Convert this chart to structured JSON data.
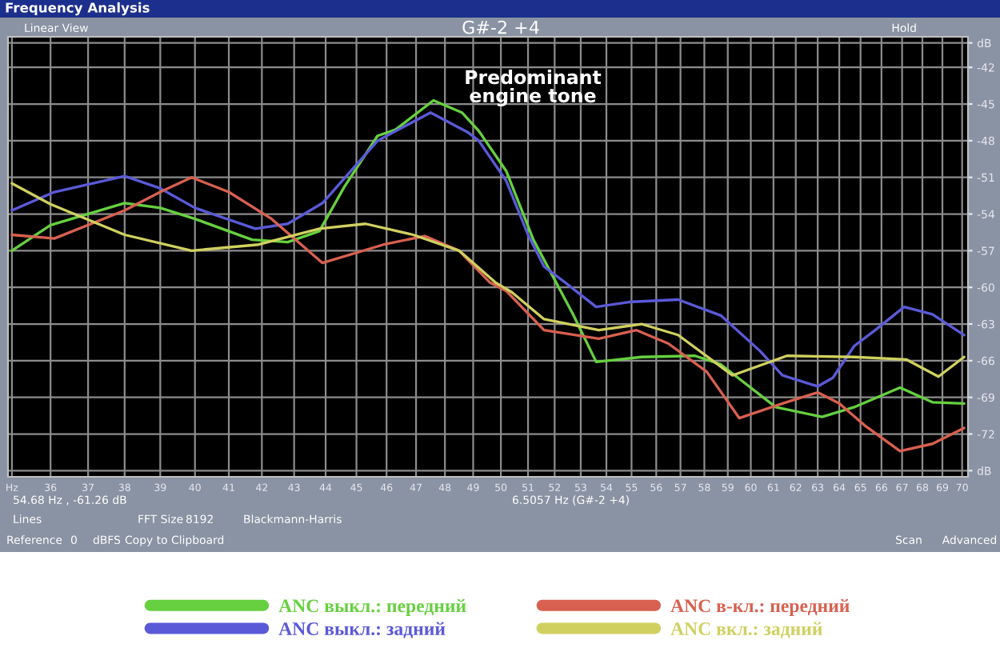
{
  "chart_data": {
    "type": "line",
    "title": "Frequency Analysis",
    "subtitle": "G#-2 +4",
    "log": "x",
    "grid": true,
    "legend": "bottom",
    "marker": "none",
    "line_style": "solid",
    "xlim": [
      34.9,
      70.3
    ],
    "ylim": [
      -75.5,
      -39.5
    ],
    "xticks": [
      {
        "value": 35,
        "label": "Hz"
      },
      36,
      37,
      38,
      39,
      40,
      41,
      42,
      43,
      44,
      45,
      46,
      47,
      48,
      49,
      50,
      51,
      52,
      53,
      54,
      55,
      56,
      57,
      58,
      59,
      60,
      61,
      62,
      63,
      64,
      65,
      66,
      67,
      68,
      69,
      70
    ],
    "yticks": [
      {
        "value": -40,
        "label": "dB"
      },
      -42,
      -45,
      -48,
      -51,
      -54,
      -57,
      -60,
      -63,
      -66,
      -69,
      -72,
      {
        "value": -75,
        "label": "dB"
      }
    ],
    "series": [
      {
        "name": "ANC выкл.: передний",
        "color": "#66d040",
        "x": [
          35.0,
          36.0,
          38.0,
          39.0,
          40.0,
          41.7,
          42.8,
          43.8,
          44.6,
          45.7,
          46.3,
          47.6,
          48.6,
          49.2,
          50.2,
          51.2,
          52.7,
          53.6,
          55.4,
          57.6,
          58.7,
          61.1,
          63.2,
          64.7,
          66.9,
          68.5,
          70.1
        ],
        "values": [
          -57.0,
          -54.9,
          -53.1,
          -53.5,
          -54.4,
          -56.1,
          -56.3,
          -55.4,
          -51.8,
          -47.6,
          -47.1,
          -44.7,
          -45.7,
          -47.2,
          -50.5,
          -56.1,
          -62.2,
          -66.1,
          -65.7,
          -65.6,
          -66.3,
          -69.8,
          -70.6,
          -69.8,
          -68.2,
          -69.4,
          -69.5
        ]
      },
      {
        "name": "ANC выкл.: задний",
        "color": "#5a5ad8",
        "x": [
          35.0,
          36.1,
          38.0,
          39.0,
          40.0,
          41.8,
          42.8,
          43.9,
          45.7,
          47.5,
          48.8,
          49.2,
          50.2,
          51.0,
          51.6,
          52.4,
          53.6,
          54.9,
          56.9,
          58.7,
          60.4,
          61.4,
          63.0,
          63.7,
          64.7,
          65.7,
          67.1,
          68.5,
          70.1
        ],
        "values": [
          -53.7,
          -52.2,
          -50.9,
          -51.9,
          -53.5,
          -55.2,
          -54.8,
          -53.1,
          -48.0,
          -45.7,
          -47.3,
          -48.0,
          -51.3,
          -55.7,
          -58.3,
          -59.6,
          -61.6,
          -61.2,
          -61.0,
          -62.3,
          -65.2,
          -67.2,
          -68.1,
          -67.4,
          -64.8,
          -63.5,
          -61.6,
          -62.2,
          -63.9
        ]
      },
      {
        "name": "ANC в-кл.: передний",
        "color": "#d86050",
        "x": [
          35.0,
          36.1,
          38.0,
          39.0,
          39.9,
          41.0,
          42.3,
          43.9,
          45.9,
          47.3,
          48.5,
          49.6,
          50.2,
          51.6,
          53.7,
          55.2,
          56.5,
          58.1,
          59.5,
          61.4,
          63.0,
          64.0,
          65.2,
          66.9,
          68.5,
          70.1
        ],
        "values": [
          -55.7,
          -56.0,
          -53.7,
          -52.2,
          -51.0,
          -52.2,
          -54.4,
          -58.0,
          -56.5,
          -55.8,
          -57.0,
          -59.6,
          -60.3,
          -63.5,
          -64.2,
          -63.5,
          -64.6,
          -66.9,
          -70.7,
          -69.5,
          -68.6,
          -69.5,
          -71.3,
          -73.4,
          -72.8,
          -71.5
        ]
      },
      {
        "name": "ANC вкл.: задний",
        "color": "#d0d060",
        "x": [
          35.0,
          36.0,
          38.0,
          39.9,
          41.9,
          43.8,
          45.3,
          46.9,
          48.5,
          49.8,
          50.4,
          51.6,
          53.7,
          55.4,
          56.9,
          59.2,
          61.6,
          64.7,
          67.2,
          68.8,
          70.1
        ],
        "values": [
          -51.5,
          -53.2,
          -55.7,
          -57.0,
          -56.5,
          -55.2,
          -54.8,
          -55.7,
          -57.0,
          -59.6,
          -60.4,
          -62.6,
          -63.5,
          -63.0,
          -63.9,
          -67.2,
          -65.6,
          -65.7,
          -65.9,
          -67.3,
          -65.7
        ]
      }
    ],
    "annotations": [
      "Predominant\nengine tone",
      "Linear View",
      "Hold",
      "54.68 Hz , -61.26 dB",
      "6.5057 Hz (G#-2 +4)",
      "Lines",
      "FFT Size",
      "8192",
      "Blackmann-Harris",
      "Reference",
      "0",
      "dBFS",
      "Copy to Clipboard",
      "Scan",
      "Advanced"
    ]
  }
}
